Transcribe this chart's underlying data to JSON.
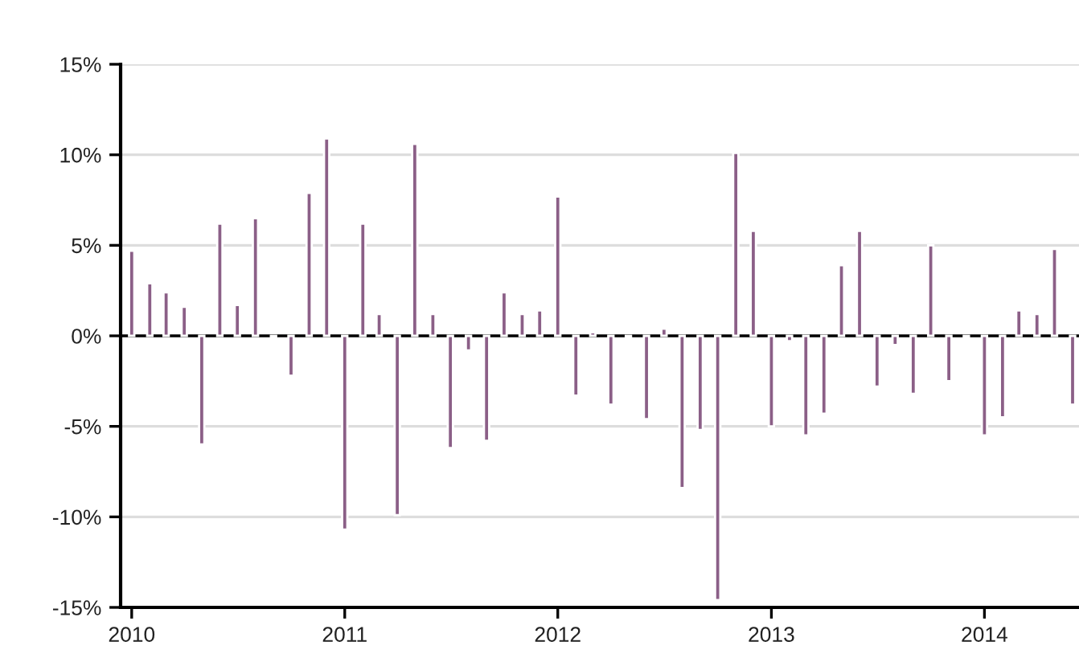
{
  "chart_data": {
    "type": "bar",
    "color": "#8b5f87",
    "x": [
      "2010-01",
      "2010-02",
      "2010-03",
      "2010-04",
      "2010-05",
      "2010-06",
      "2010-07",
      "2010-08",
      "2010-09",
      "2010-10",
      "2010-11",
      "2010-12",
      "2011-01",
      "2011-02",
      "2011-03",
      "2011-04",
      "2011-05",
      "2011-06",
      "2011-07",
      "2011-08",
      "2011-09",
      "2011-10",
      "2011-11",
      "2011-12",
      "2012-01",
      "2012-02",
      "2012-03",
      "2012-04",
      "2012-05",
      "2012-06",
      "2012-07",
      "2012-08",
      "2012-09",
      "2012-10",
      "2012-11",
      "2012-12",
      "2013-01",
      "2013-02",
      "2013-03",
      "2013-04",
      "2013-05",
      "2013-06",
      "2013-07",
      "2013-08",
      "2013-09",
      "2013-10",
      "2013-11",
      "2013-12",
      "2014-01",
      "2014-02",
      "2014-03",
      "2014-04",
      "2014-05",
      "2014-06"
    ],
    "values": [
      4.7,
      2.9,
      2.4,
      1.6,
      -6.0,
      6.2,
      1.7,
      6.5,
      -0.1,
      -2.2,
      7.9,
      10.9,
      -10.7,
      6.2,
      1.2,
      -9.9,
      10.6,
      1.2,
      -6.2,
      -0.8,
      -5.8,
      2.4,
      1.2,
      1.4,
      7.7,
      -3.3,
      0.2,
      -3.8,
      -0.1,
      -4.6,
      0.4,
      -8.4,
      -5.2,
      -14.6,
      10.1,
      5.8,
      -5.0,
      -0.3,
      -5.5,
      -4.3,
      3.9,
      5.8,
      -2.8,
      -0.5,
      -3.2,
      5.0,
      -2.5,
      -0.1,
      -5.5,
      -4.5,
      1.4,
      1.2,
      4.8,
      -3.8
    ],
    "xlim": [
      "2009-12-13",
      "2014-06-12"
    ],
    "xticks": [
      "2010",
      "2011",
      "2012",
      "2013",
      "2014"
    ],
    "ylim": [
      -15,
      15
    ],
    "yticks": [
      {
        "value": -15,
        "label": "-15%"
      },
      {
        "value": -10,
        "label": "-10%"
      },
      {
        "value": -5,
        "label": "-5%"
      },
      {
        "value": 0,
        "label": "0%"
      },
      {
        "value": 5,
        "label": "5%"
      },
      {
        "value": 10,
        "label": "10%"
      },
      {
        "value": 15,
        "label": "15%"
      }
    ],
    "ref_lines": [
      {
        "axis": "y",
        "value": 0,
        "color": "#000000"
      }
    ],
    "grid": "y"
  }
}
